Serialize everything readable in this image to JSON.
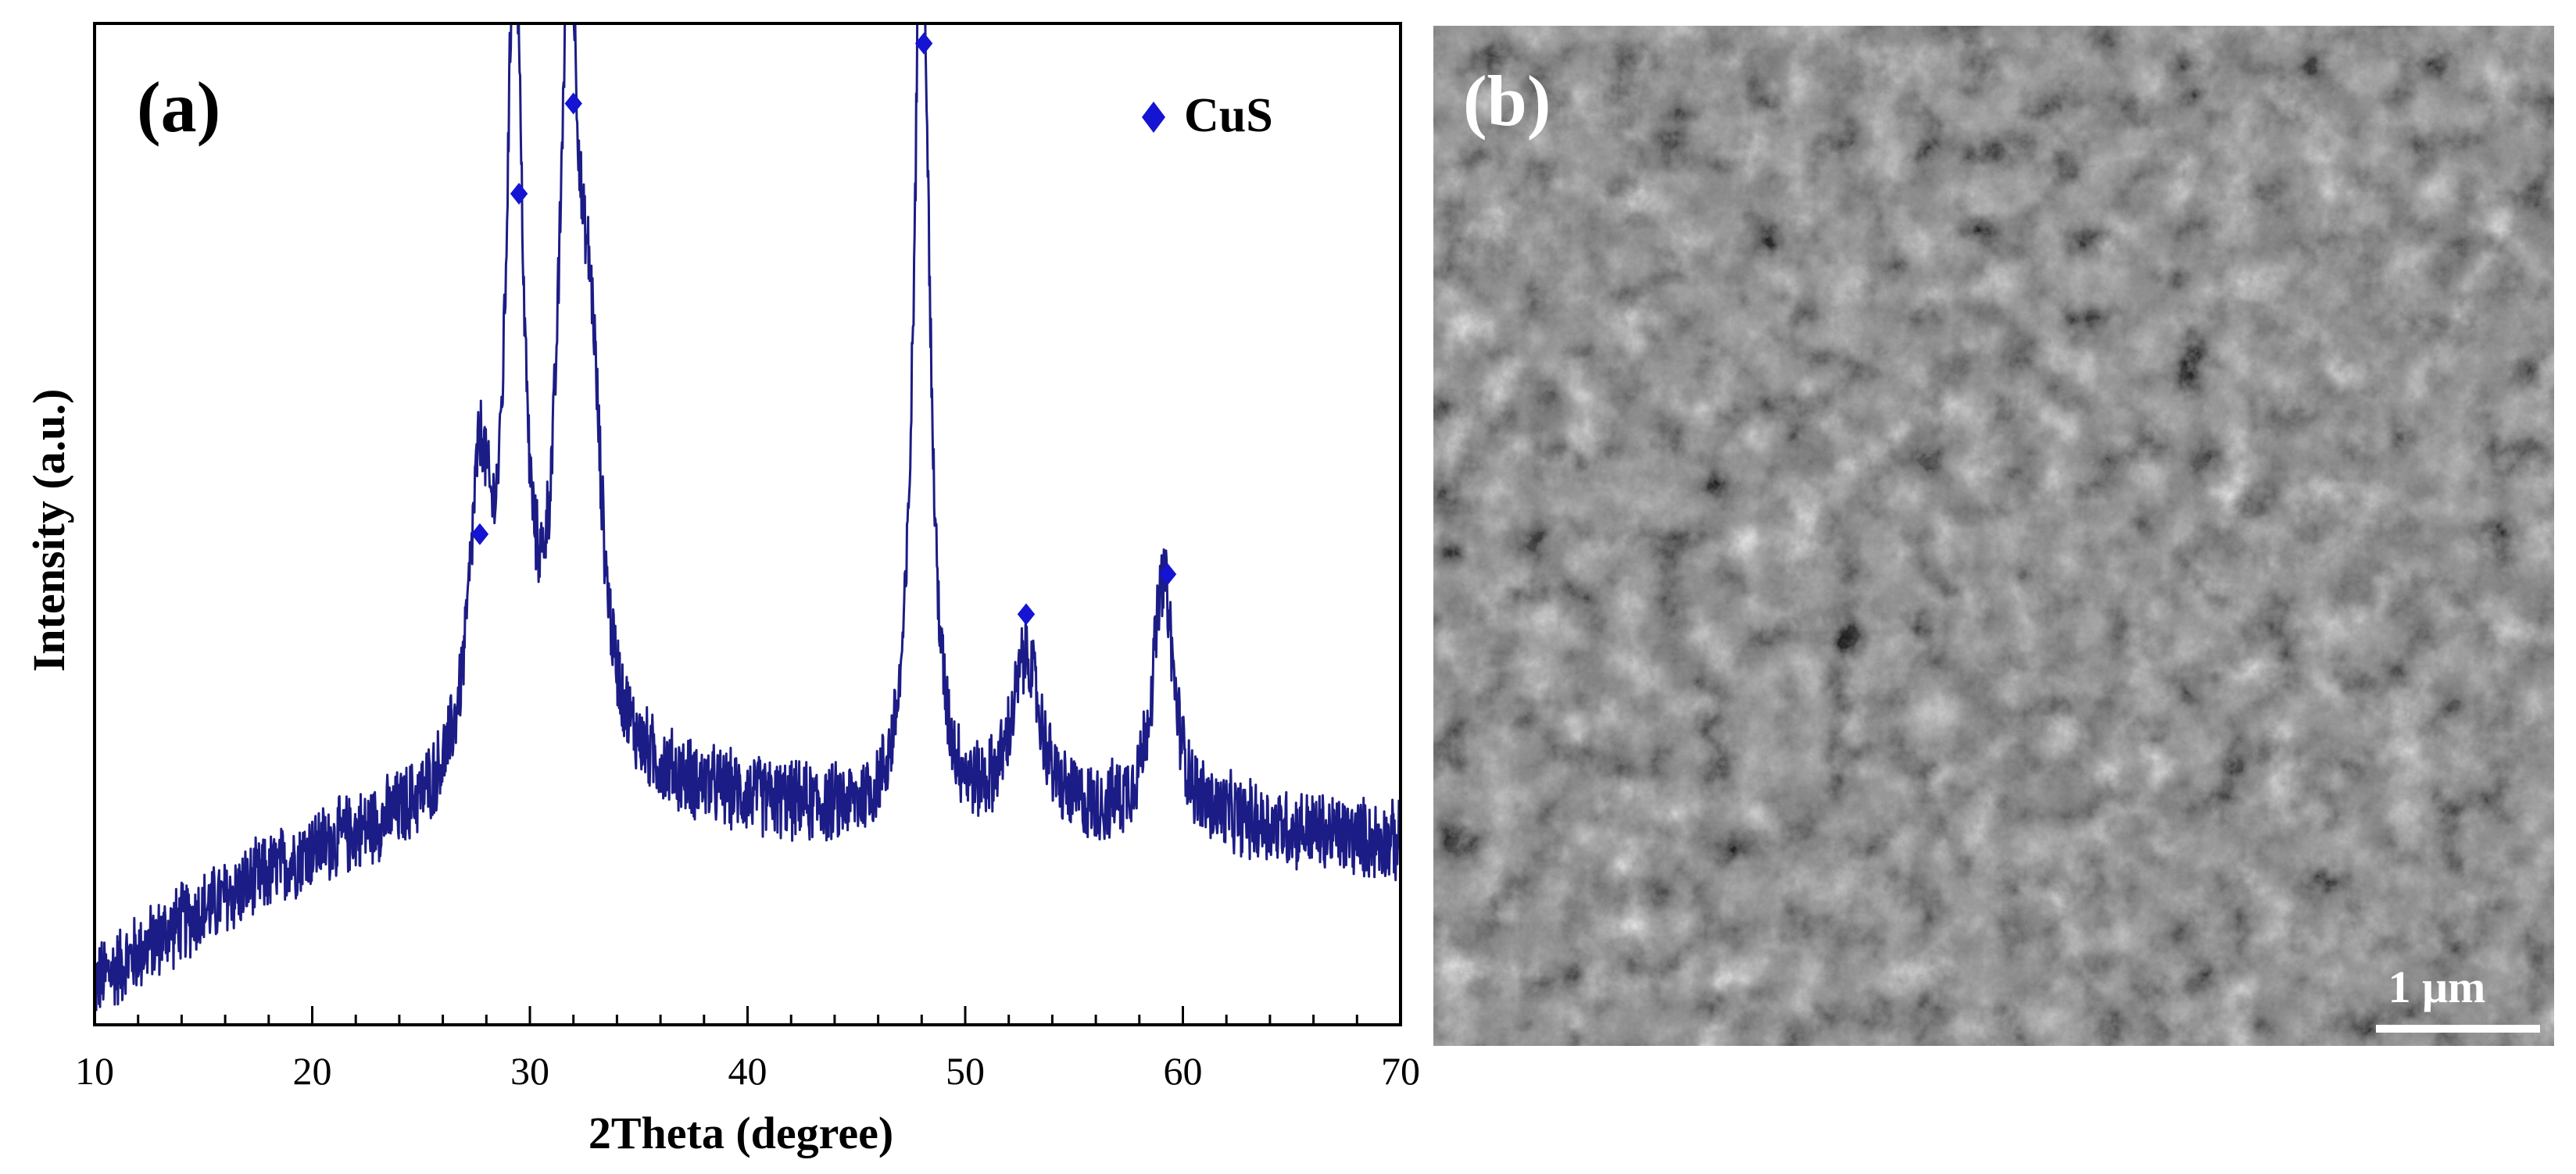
{
  "panel_a": {
    "label": "(a)",
    "legend_label": "CuS",
    "marker_color": "#1414d2"
  },
  "panel_b": {
    "label": "(b)",
    "scale_bar_label": "1 μm"
  },
  "chart_data": {
    "type": "line",
    "xlabel": "2Theta (degree)",
    "ylabel": "Intensity (a.u.)",
    "xlim": [
      10,
      70
    ],
    "ylim": [
      0,
      100
    ],
    "x_ticks": [
      10,
      20,
      30,
      40,
      50,
      60,
      70
    ],
    "x_tick_labels": [
      "10",
      "20",
      "30",
      "40",
      "50",
      "60",
      "70"
    ],
    "y_tick_labels_shown": false,
    "grid": false,
    "line_color": "#1c1c86",
    "legend": {
      "entries": [
        {
          "name": "CuS",
          "marker": "diamond",
          "color": "#1414d2"
        }
      ],
      "placement": "top-right"
    },
    "baseline": {
      "x": [
        10,
        14,
        20,
        26,
        30,
        34,
        40,
        46,
        50,
        56,
        62,
        66,
        70
      ],
      "y": [
        4,
        10,
        17,
        21,
        23,
        24,
        22,
        20,
        20,
        20,
        20,
        19,
        18
      ]
    },
    "peaks": [
      {
        "center": 27.7,
        "height": 29,
        "width": 0.6
      },
      {
        "center": 29.3,
        "height": 80,
        "width": 0.45
      },
      {
        "center": 31.8,
        "height": 74,
        "width": 0.55
      },
      {
        "center": 32.8,
        "height": 32,
        "width": 0.6
      },
      {
        "center": 48.0,
        "height": 94,
        "width": 0.42
      },
      {
        "center": 52.8,
        "height": 16,
        "width": 0.8
      },
      {
        "center": 59.1,
        "height": 24,
        "width": 0.6
      }
    ],
    "noise_amplitude": 4.5,
    "peak_markers": [
      {
        "x": 27.7,
        "y": 49
      },
      {
        "x": 29.5,
        "y": 83
      },
      {
        "x": 32.0,
        "y": 92
      },
      {
        "x": 48.1,
        "y": 98
      },
      {
        "x": 52.8,
        "y": 41
      },
      {
        "x": 59.3,
        "y": 45
      }
    ]
  }
}
